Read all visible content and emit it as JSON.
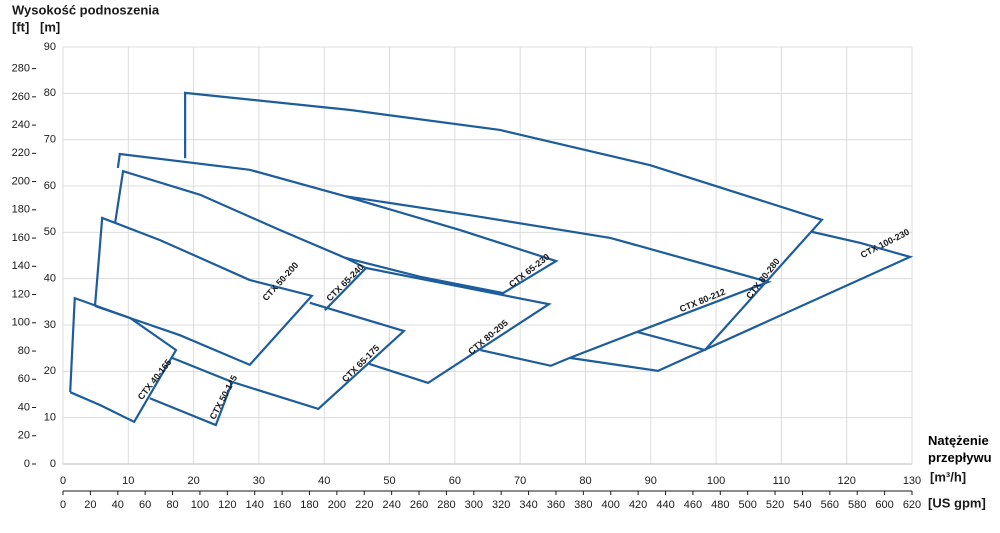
{
  "chart_data": {
    "type": "line",
    "y_title": "Wysokość podnoszenia",
    "y2_unit": "[ft]",
    "y_unit": "[m]",
    "x_title": "Natężenie przepływu",
    "x_unit": "[m³/h]",
    "x2_unit": "[US gpm]",
    "xlim": [
      0,
      130
    ],
    "xticks": [
      0,
      10,
      20,
      30,
      40,
      50,
      60,
      70,
      80,
      90,
      100,
      110,
      120,
      130
    ],
    "x2lim": [
      0,
      620
    ],
    "x2ticks": [
      0,
      20,
      40,
      60,
      80,
      100,
      120,
      140,
      160,
      180,
      200,
      220,
      240,
      260,
      280,
      300,
      320,
      340,
      360,
      380,
      400,
      420,
      440,
      460,
      480,
      500,
      520,
      540,
      560,
      580,
      600,
      620
    ],
    "ylim": [
      0,
      90
    ],
    "yticks": [
      0,
      10,
      20,
      30,
      40,
      50,
      60,
      70,
      80,
      90
    ],
    "y2lim": [
      0,
      295.3
    ],
    "y2ticks": [
      0,
      20,
      40,
      60,
      80,
      100,
      120,
      140,
      160,
      180,
      200,
      220,
      240,
      260,
      280
    ],
    "grid": true,
    "series": [
      {
        "name": "CTX 40-165",
        "color": "#1d5d9b",
        "x": [
          1.1,
          5.7,
          10.9,
          17.3,
          10.3,
          1.8,
          1.1
        ],
        "values": [
          15.5,
          12.7,
          9.1,
          24.6,
          31.5,
          35.8,
          15.5
        ]
      },
      {
        "name": "CTX 50-145",
        "color": "#1d5d9b",
        "x": [
          16.7,
          25.9,
          23.4,
          13.3
        ],
        "values": [
          22.9,
          17.7,
          8.4,
          14.2
        ]
      },
      {
        "name": "CTX 50-200",
        "color": "#1d5d9b",
        "x": [
          4.9,
          6.0,
          14.9,
          28.6,
          38.1,
          28.6,
          17.9,
          4.9
        ],
        "values": [
          34.1,
          53.1,
          48.3,
          39.7,
          36.3,
          21.4,
          27.8,
          34.1
        ]
      },
      {
        "name": "CTX 65-175",
        "color": "#1d5d9b",
        "x": [
          25.9,
          39.1,
          52.2,
          37.8
        ],
        "values": [
          17.7,
          11.9,
          28.7,
          34.8
        ]
      },
      {
        "name": "CTX 65-240",
        "color": "#1d5d9b",
        "x": [
          8.0,
          9.2,
          21.0,
          33.2,
          43.2,
          46.4,
          40.1
        ],
        "values": [
          52.2,
          63.2,
          58.1,
          50.5,
          44.5,
          42.3,
          33.2
        ]
      },
      {
        "name": "CTX 65-230",
        "color": "#1d5d9b",
        "x": [
          8.4,
          8.7,
          28.6,
          43.2,
          60.8,
          75.5,
          67.4,
          54.7,
          43.2
        ],
        "values": [
          63.9,
          66.9,
          63.5,
          57.8,
          50.5,
          43.8,
          36.9,
          40.4,
          44.5
        ]
      },
      {
        "name": "CTX 80-205",
        "color": "#1d5d9b",
        "x": [
          46.4,
          74.4,
          55.9,
          46.9
        ],
        "values": [
          42.3,
          34.5,
          17.5,
          21.6
        ]
      },
      {
        "name": "CTX 80-212",
        "color": "#1d5d9b",
        "x": [
          43.2,
          62.3,
          83.8,
          108.0,
          87.9,
          77.6,
          74.7,
          63.9
        ],
        "values": [
          57.8,
          53.7,
          48.8,
          39.3,
          28.5,
          22.9,
          21.2,
          24.6
        ]
      },
      {
        "name": "CTX 80-280",
        "color": "#1d5d9b",
        "x": [
          18.7,
          18.7,
          44.0,
          66.9,
          89.9,
          116.2,
          98.3,
          87.9
        ],
        "values": [
          66.0,
          80.1,
          76.4,
          72.1,
          64.5,
          52.7,
          24.6,
          28.5
        ]
      },
      {
        "name": "CTX 100-230",
        "color": "#1d5d9b",
        "x": [
          114.7,
          122.1,
          129.7,
          91.1,
          77.6
        ],
        "values": [
          50.1,
          47.7,
          44.7,
          20.1,
          22.9
        ]
      }
    ]
  }
}
